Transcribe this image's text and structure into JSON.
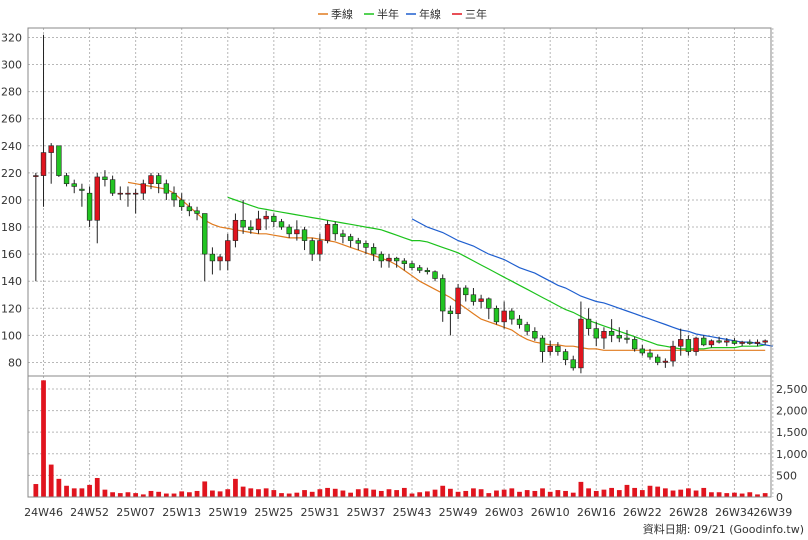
{
  "legend": [
    {
      "label": "季線",
      "color": "#e07b1f"
    },
    {
      "label": "半年",
      "color": "#1cc21c"
    },
    {
      "label": "年線",
      "color": "#1f5fcf"
    },
    {
      "label": "三年",
      "color": "#e0141e"
    }
  ],
  "footer": "資料日期: 09/21  (Goodinfo.tw)",
  "chart_data": {
    "type": "candlestick",
    "price_ticks": [
      80,
      100,
      120,
      140,
      160,
      180,
      200,
      220,
      240,
      260,
      280,
      300,
      320
    ],
    "price_ylim": [
      70,
      327
    ],
    "volume_ticks": [
      "0",
      "500",
      "1,000",
      "1,500",
      "2,000",
      "2,500"
    ],
    "volume_tick_values": [
      0,
      500,
      1000,
      1500,
      2000,
      2500
    ],
    "volume_ylim": [
      0,
      2800
    ],
    "x_labels": [
      {
        "i": 1,
        "label": "24W46"
      },
      {
        "i": 7,
        "label": "24W52"
      },
      {
        "i": 13,
        "label": "25W07"
      },
      {
        "i": 19,
        "label": "25W13"
      },
      {
        "i": 25,
        "label": "25W19"
      },
      {
        "i": 31,
        "label": "25W25"
      },
      {
        "i": 37,
        "label": "25W31"
      },
      {
        "i": 43,
        "label": "25W37"
      },
      {
        "i": 49,
        "label": "25W43"
      },
      {
        "i": 55,
        "label": "25W49"
      },
      {
        "i": 61,
        "label": "26W03"
      },
      {
        "i": 67,
        "label": "26W10"
      },
      {
        "i": 73,
        "label": "26W16"
      },
      {
        "i": 79,
        "label": "26W22"
      },
      {
        "i": 85,
        "label": "26W28"
      },
      {
        "i": 91,
        "label": "26W34"
      },
      {
        "i": 96,
        "label": "26W39"
      }
    ],
    "candles": [
      [
        218,
        220,
        140,
        218
      ],
      [
        218,
        322,
        195,
        235
      ],
      [
        235,
        242,
        212,
        240
      ],
      [
        240,
        240,
        217,
        218
      ],
      [
        218,
        220,
        210,
        212
      ],
      [
        212,
        215,
        205,
        210
      ],
      [
        208,
        212,
        195,
        207
      ],
      [
        205,
        210,
        180,
        185
      ],
      [
        185,
        220,
        168,
        217
      ],
      [
        217,
        222,
        210,
        215
      ],
      [
        215,
        218,
        203,
        205
      ],
      [
        205,
        210,
        200,
        205
      ],
      [
        205,
        210,
        195,
        205
      ],
      [
        205,
        208,
        190,
        205
      ],
      [
        205,
        215,
        200,
        212
      ],
      [
        212,
        220,
        208,
        218
      ],
      [
        218,
        220,
        205,
        212
      ],
      [
        212,
        215,
        200,
        205
      ],
      [
        205,
        210,
        195,
        200
      ],
      [
        200,
        205,
        192,
        195
      ],
      [
        195,
        198,
        188,
        192
      ],
      [
        192,
        195,
        185,
        190
      ],
      [
        190,
        190,
        140,
        160
      ],
      [
        160,
        165,
        145,
        155
      ],
      [
        155,
        160,
        148,
        158
      ],
      [
        155,
        175,
        148,
        170
      ],
      [
        170,
        190,
        165,
        185
      ],
      [
        185,
        200,
        175,
        180
      ],
      [
        180,
        185,
        175,
        178
      ],
      [
        178,
        192,
        175,
        186
      ],
      [
        186,
        192,
        178,
        188
      ],
      [
        188,
        190,
        180,
        184
      ],
      [
        184,
        186,
        178,
        180
      ],
      [
        180,
        182,
        172,
        175
      ],
      [
        175,
        185,
        170,
        178
      ],
      [
        178,
        180,
        163,
        170
      ],
      [
        170,
        172,
        155,
        160
      ],
      [
        160,
        175,
        155,
        170
      ],
      [
        170,
        185,
        168,
        182
      ],
      [
        182,
        184,
        170,
        175
      ],
      [
        175,
        178,
        168,
        173
      ],
      [
        173,
        175,
        165,
        170
      ],
      [
        170,
        172,
        163,
        168
      ],
      [
        168,
        170,
        160,
        165
      ],
      [
        165,
        168,
        155,
        160
      ],
      [
        160,
        162,
        150,
        155
      ],
      [
        155,
        160,
        150,
        157
      ],
      [
        157,
        158,
        150,
        155
      ],
      [
        155,
        157,
        148,
        153
      ],
      [
        153,
        155,
        148,
        150
      ],
      [
        150,
        152,
        146,
        148
      ],
      [
        148,
        150,
        145,
        147
      ],
      [
        147,
        148,
        140,
        142
      ],
      [
        142,
        145,
        110,
        118
      ],
      [
        118,
        122,
        100,
        116
      ],
      [
        116,
        138,
        112,
        135
      ],
      [
        135,
        137,
        125,
        130
      ],
      [
        130,
        135,
        122,
        125
      ],
      [
        125,
        130,
        120,
        127
      ],
      [
        127,
        128,
        112,
        120
      ],
      [
        120,
        122,
        108,
        110
      ],
      [
        110,
        125,
        105,
        118
      ],
      [
        118,
        120,
        108,
        112
      ],
      [
        112,
        115,
        105,
        108
      ],
      [
        108,
        110,
        100,
        103
      ],
      [
        103,
        106,
        96,
        98
      ],
      [
        98,
        100,
        80,
        88
      ],
      [
        88,
        96,
        85,
        92
      ],
      [
        92,
        95,
        85,
        88
      ],
      [
        88,
        90,
        78,
        82
      ],
      [
        82,
        85,
        74,
        76
      ],
      [
        76,
        125,
        72,
        112
      ],
      [
        112,
        120,
        100,
        105
      ],
      [
        105,
        110,
        92,
        98
      ],
      [
        98,
        106,
        90,
        103
      ],
      [
        103,
        112,
        95,
        100
      ],
      [
        100,
        106,
        95,
        98
      ],
      [
        98,
        104,
        94,
        97
      ],
      [
        97,
        99,
        88,
        90
      ],
      [
        90,
        93,
        85,
        87
      ],
      [
        87,
        90,
        82,
        84
      ],
      [
        84,
        86,
        78,
        80
      ],
      [
        80,
        83,
        76,
        81
      ],
      [
        81,
        96,
        77,
        92
      ],
      [
        92,
        105,
        85,
        97
      ],
      [
        97,
        100,
        85,
        88
      ],
      [
        88,
        99,
        85,
        98
      ],
      [
        98,
        100,
        92,
        93
      ],
      [
        93,
        97,
        91,
        96
      ],
      [
        96,
        99,
        94,
        95
      ],
      [
        95,
        98,
        92,
        96
      ],
      [
        96,
        98,
        93,
        94
      ],
      [
        94,
        96,
        92,
        95
      ],
      [
        95,
        97,
        93,
        94
      ],
      [
        94,
        97,
        92,
        95
      ],
      [
        95,
        97,
        93,
        96
      ]
    ],
    "volumes": [
      300,
      2700,
      750,
      420,
      260,
      200,
      200,
      280,
      440,
      170,
      110,
      90,
      110,
      90,
      60,
      140,
      120,
      80,
      80,
      130,
      110,
      140,
      360,
      150,
      130,
      180,
      420,
      240,
      200,
      180,
      200,
      160,
      90,
      80,
      100,
      160,
      120,
      180,
      210,
      190,
      150,
      100,
      180,
      200,
      170,
      140,
      180,
      160,
      210,
      80,
      110,
      130,
      170,
      260,
      190,
      120,
      140,
      200,
      180,
      90,
      150,
      170,
      200,
      120,
      160,
      140,
      200,
      120,
      160,
      140,
      100,
      350,
      200,
      140,
      170,
      210,
      160,
      280,
      210,
      160,
      260,
      240,
      200,
      150,
      170,
      200,
      150,
      210,
      110,
      110,
      90,
      100,
      80,
      110,
      60,
      90
    ],
    "series": [
      {
        "name": "季線",
        "start": 12,
        "values": [
          213,
          212,
          211,
          210,
          209,
          208,
          205,
          200,
          195,
          190,
          185,
          182,
          180,
          179,
          178,
          177,
          176,
          175,
          175,
          174,
          173,
          172,
          172,
          172,
          172,
          171,
          170,
          169,
          167,
          165,
          163,
          161,
          159,
          157,
          155,
          152,
          148,
          144,
          140,
          137,
          134,
          131,
          128,
          124,
          120,
          116,
          112,
          110,
          108,
          106,
          104,
          100,
          97,
          95,
          94,
          93,
          93,
          92,
          92,
          91,
          90,
          90,
          89,
          89,
          89,
          89,
          89,
          89,
          89,
          89,
          89,
          89,
          89,
          89,
          89,
          89,
          89,
          89,
          89,
          89,
          89,
          89,
          89,
          89
        ]
      },
      {
        "name": "半年",
        "start": 25,
        "values": [
          202,
          200,
          198,
          196,
          194,
          193,
          192,
          191,
          190,
          189,
          188,
          187,
          186,
          185,
          184,
          183,
          182,
          181,
          180,
          179,
          178,
          176,
          174,
          172,
          170,
          170,
          169,
          167,
          165,
          163,
          161,
          158,
          155,
          152,
          149,
          146,
          143,
          140,
          137,
          134,
          131,
          128,
          125,
          122,
          119,
          117,
          114,
          111,
          109,
          107,
          105,
          103,
          101,
          99,
          97,
          95,
          93,
          92,
          91,
          90,
          90,
          90,
          90,
          91,
          91,
          91,
          91,
          92,
          92,
          92,
          93
        ]
      },
      {
        "name": "年線",
        "start": 49,
        "values": [
          186,
          183,
          180,
          178,
          176,
          173,
          170,
          168,
          166,
          163,
          160,
          158,
          156,
          153,
          150,
          148,
          146,
          143,
          140,
          137,
          135,
          132,
          129,
          127,
          125,
          124,
          122,
          120,
          118,
          116,
          114,
          112,
          110,
          108,
          106,
          104,
          103,
          101,
          100,
          99,
          98,
          97,
          96,
          95,
          95,
          94,
          93,
          92
        ]
      }
    ]
  }
}
